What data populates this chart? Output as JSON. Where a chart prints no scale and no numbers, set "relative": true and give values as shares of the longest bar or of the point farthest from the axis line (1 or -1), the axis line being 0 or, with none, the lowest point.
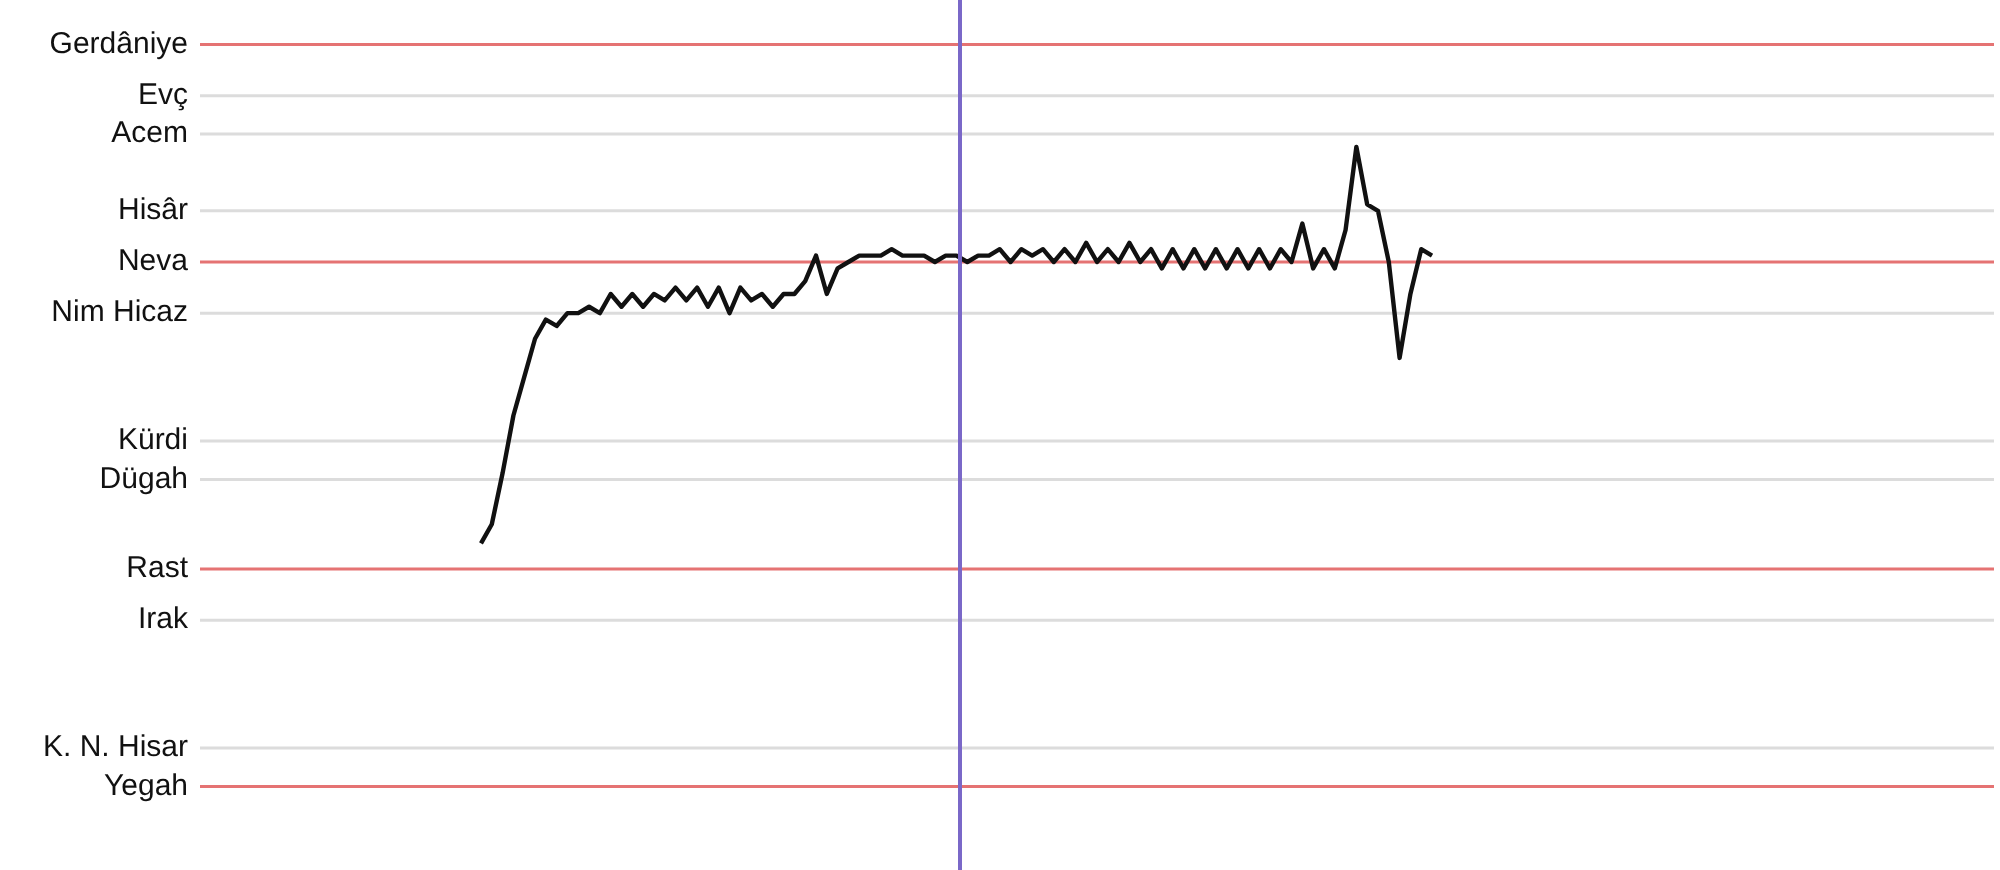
{
  "chart_data": {
    "type": "line",
    "relative": true,
    "categories": [
      null,
      null,
      null,
      null,
      null,
      null,
      null,
      null,
      null,
      null,
      null,
      null,
      null,
      null,
      null,
      null,
      null,
      null,
      null,
      null,
      null,
      null,
      null,
      null,
      null,
      null,
      null,
      null,
      null,
      null,
      null,
      null,
      null,
      null,
      null,
      null,
      null,
      null,
      null,
      null,
      null,
      null,
      null,
      null,
      null,
      null,
      null,
      null,
      null,
      null,
      null,
      null,
      null,
      null,
      null,
      null,
      null,
      null,
      null,
      null,
      null,
      null,
      null,
      null,
      null,
      null,
      null,
      null,
      null,
      null,
      null,
      null,
      null,
      null,
      null,
      null,
      null,
      null,
      null,
      null,
      null,
      null,
      null,
      null,
      null,
      null,
      null,
      null,
      null,
      null,
      null,
      null,
      null,
      null,
      null,
      null,
      null,
      null,
      null,
      null,
      null,
      null,
      null,
      null,
      null,
      null,
      null,
      null,
      null,
      null,
      null,
      null,
      null,
      null,
      null,
      null,
      null,
      null,
      null,
      null,
      null,
      null,
      null,
      null,
      null,
      null,
      null,
      null,
      null,
      null,
      null,
      null,
      null,
      null,
      null,
      null,
      null,
      null,
      null,
      null,
      null,
      null,
      null,
      null,
      null,
      null,
      null,
      null,
      null,
      null,
      null,
      null,
      null,
      null,
      null,
      null,
      null,
      null,
      null,
      null,
      null,
      null,
      null,
      null,
      null,
      null,
      null
    ],
    "legend": false,
    "marker": "none",
    "line_style": "solid",
    "ref_lines": [
      {
        "axis": "y",
        "value": 1.16,
        "label": "Gerdâniye",
        "color": "#e57373"
      },
      {
        "axis": "y",
        "value": 1.08,
        "label": "Evç",
        "color": "#dcdcdc"
      },
      {
        "axis": "y",
        "value": 1.02,
        "label": "Acem",
        "color": "#dcdcdc"
      },
      {
        "axis": "y",
        "value": 0.9,
        "label": "Hisâr",
        "color": "#dcdcdc"
      },
      {
        "axis": "y",
        "value": 0.82,
        "label": "Neva",
        "color": "#e57373"
      },
      {
        "axis": "y",
        "value": 0.74,
        "label": "Nim Hicaz",
        "color": "#dcdcdc"
      },
      {
        "axis": "y",
        "value": 0.54,
        "label": "Kürdi",
        "color": "#dcdcdc"
      },
      {
        "axis": "y",
        "value": 0.48,
        "label": "Dügah",
        "color": "#dcdcdc"
      },
      {
        "axis": "y",
        "value": 0.34,
        "label": "Rast",
        "color": "#e57373"
      },
      {
        "axis": "y",
        "value": 0.26,
        "label": "Irak",
        "color": "#dcdcdc"
      },
      {
        "axis": "y",
        "value": 0.06,
        "label": "K. N. Hisar",
        "color": "#dcdcdc"
      },
      {
        "axis": "y",
        "value": 0,
        "label": "Yegah",
        "color": "#e57373"
      }
    ],
    "series": [
      {
        "color": "#111111",
        "values": [
          null,
          null,
          null,
          null,
          null,
          null,
          null,
          null,
          null,
          null,
          null,
          null,
          null,
          null,
          null,
          null,
          null,
          null,
          null,
          null,
          null,
          null,
          null,
          null,
          null,
          null,
          0.38,
          0.41,
          0.49,
          0.58,
          0.64,
          0.7,
          0.73,
          0.72,
          0.74,
          0.74,
          0.75,
          0.74,
          0.77,
          0.75,
          0.77,
          0.75,
          0.77,
          0.76,
          0.78,
          0.76,
          0.78,
          0.75,
          0.78,
          0.74,
          0.78,
          0.76,
          0.77,
          0.75,
          0.77,
          0.77,
          0.79,
          0.83,
          0.77,
          0.81,
          0.82,
          0.83,
          0.83,
          0.83,
          0.84,
          0.83,
          0.83,
          0.83,
          0.82,
          0.83,
          0.83,
          0.82,
          0.83,
          0.83,
          0.84,
          0.82,
          0.84,
          0.83,
          0.84,
          0.82,
          0.84,
          0.82,
          0.85,
          0.82,
          0.84,
          0.82,
          0.85,
          0.82,
          0.84,
          0.81,
          0.84,
          0.81,
          0.84,
          0.81,
          0.84,
          0.81,
          0.84,
          0.81,
          0.84,
          0.81,
          0.84,
          0.82,
          0.88,
          0.81,
          0.84,
          0.81,
          0.87,
          1.0,
          0.91,
          0.9,
          0.82,
          0.67,
          0.77,
          0.84,
          0.83,
          null,
          null,
          null,
          null,
          null,
          null,
          null,
          null,
          null,
          null,
          null,
          null,
          null,
          null,
          null,
          null,
          null,
          null,
          null,
          null,
          null,
          null,
          null,
          null,
          null,
          null,
          null,
          null,
          null,
          null,
          null,
          null,
          null,
          null,
          null,
          null,
          null,
          null,
          null,
          null,
          null,
          null,
          null,
          null,
          null,
          null,
          null,
          null,
          null,
          null,
          null,
          null
        ]
      }
    ]
  }
}
